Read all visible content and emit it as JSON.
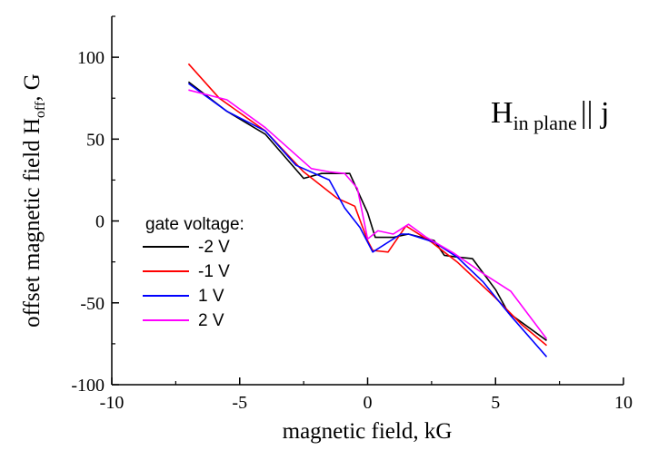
{
  "chart_data": {
    "type": "line",
    "xlabel": "magnetic field, kG",
    "ylabel_main": "offset magnetic field H",
    "ylabel_sub": "off",
    "ylabel_tail": ", G",
    "xlim": [
      -10,
      10
    ],
    "ylim": [
      -100,
      125
    ],
    "xticks": [
      -10,
      -5,
      0,
      5,
      10
    ],
    "yticks": [
      -100,
      -50,
      0,
      50,
      100
    ],
    "grid": false,
    "legend_title": "gate voltage:",
    "legend_position": "middle-left",
    "annotation": {
      "main": "H",
      "sub": "in plane",
      "tail": "|| j"
    },
    "series": [
      {
        "name": "-2 V",
        "color": "#000000",
        "x": [
          -7,
          -5.5,
          -4,
          -2.5,
          -1.8,
          -0.7,
          0,
          0.3,
          1.0,
          1.6,
          2.6,
          3.0,
          3.5,
          4.1,
          5.0,
          5.5,
          7.0
        ],
        "y": [
          85,
          67,
          53,
          26,
          29,
          29,
          5,
          -10,
          -10,
          -8,
          -12,
          -21,
          -22,
          -23,
          -42,
          -56,
          -73
        ]
      },
      {
        "name": "-1 V",
        "color": "#ff0000",
        "x": [
          -7,
          -5.8,
          -4,
          -2.5,
          -1.2,
          -0.5,
          0,
          0.2,
          0.8,
          1.5,
          2.5,
          3.5,
          5.0,
          6.0,
          7.0
        ],
        "y": [
          96,
          75,
          55,
          30,
          14,
          9,
          -12,
          -18,
          -19,
          -3,
          -13,
          -25,
          -47,
          -63,
          -76
        ]
      },
      {
        "name": "1 V",
        "color": "#0000ff",
        "x": [
          -7,
          -5.5,
          -4,
          -2.8,
          -1.5,
          -0.9,
          -0.3,
          0.2,
          1.3,
          1.6,
          2.6,
          3.5,
          4.5,
          5.6,
          7.0
        ],
        "y": [
          84,
          67,
          55,
          34,
          25,
          8,
          -4,
          -19,
          -8,
          -8,
          -13,
          -22,
          -37,
          -58,
          -83
        ]
      },
      {
        "name": "2 V",
        "color": "#ff00ff",
        "x": [
          -7,
          -5.5,
          -4,
          -2.2,
          -1.5,
          -0.9,
          -0.4,
          0,
          0.4,
          1.0,
          1.6,
          2.3,
          3.4,
          4.6,
          5.6,
          7.0
        ],
        "y": [
          80,
          74,
          57,
          32,
          30,
          29,
          20,
          -11,
          -6,
          -8,
          -2,
          -10,
          -20,
          -33,
          -43,
          -72
        ]
      }
    ]
  }
}
